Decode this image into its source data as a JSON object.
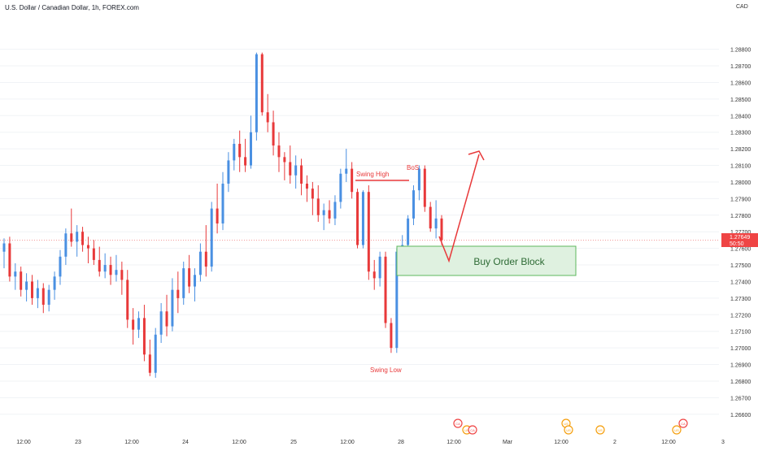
{
  "title": "U.S. Dollar / Canadian Dollar, 1h, FOREX.com",
  "currency": "CAD",
  "price_tag": {
    "value": "1.27649",
    "countdown": "50:50",
    "color": "#ef4444"
  },
  "colors": {
    "up": "#4a90e2",
    "down": "#e8393a",
    "grid": "#f0f3f6",
    "axis_text": "#333333",
    "ob_fill": "#dff1e0",
    "ob_stroke": "#5cb85c",
    "ob_text": "#2e6b35",
    "annotation": "#e8393a",
    "price_line": "#f29595"
  },
  "annotations": {
    "swing_high": "Swing High",
    "bos": "BoS",
    "swing_low": "Swing Low",
    "order_block": "Buy Order Block"
  },
  "x_axis": {
    "ticks": [
      "12:00",
      "23",
      "12:00",
      "24",
      "12:00",
      "25",
      "12:00",
      "28",
      "12:00",
      "Mar",
      "12:00",
      "2",
      "12:00",
      "3"
    ]
  },
  "events": [
    {
      "label": "CA",
      "color": "#ef4444"
    },
    {
      "label": "US",
      "color": "#f59e0b"
    },
    {
      "label": "CA",
      "color": "#ef4444"
    },
    {
      "label": "US",
      "color": "#f59e0b"
    },
    {
      "label": "US",
      "color": "#f59e0b"
    },
    {
      "label": "US",
      "color": "#f59e0b"
    },
    {
      "label": "CA",
      "color": "#ef4444"
    },
    {
      "label": "US",
      "color": "#f59e0b"
    }
  ],
  "chart_data": {
    "type": "candlestick",
    "title": "U.S. Dollar / Canadian Dollar, 1h, FOREX.com",
    "ylim": [
      1.2655,
      1.2895
    ],
    "y_ticks": [
      "1.28800",
      "1.28700",
      "1.28600",
      "1.28500",
      "1.28400",
      "1.28300",
      "1.28200",
      "1.28100",
      "1.28000",
      "1.27900",
      "1.27800",
      "1.27700",
      "1.27600",
      "1.27500",
      "1.27400",
      "1.27300",
      "1.27200",
      "1.27100",
      "1.27000",
      "1.26900",
      "1.26800",
      "1.26700",
      "1.26600"
    ],
    "candles": [
      [
        1.2758,
        1.2766,
        1.2748,
        1.2763
      ],
      [
        1.2763,
        1.2767,
        1.274,
        1.2743
      ],
      [
        1.2743,
        1.2751,
        1.2735,
        1.2746
      ],
      [
        1.2746,
        1.2749,
        1.2731,
        1.2735
      ],
      [
        1.2735,
        1.2745,
        1.2728,
        1.274
      ],
      [
        1.274,
        1.2744,
        1.2726,
        1.273
      ],
      [
        1.273,
        1.2741,
        1.2724,
        1.2736
      ],
      [
        1.2736,
        1.2739,
        1.2721,
        1.2726
      ],
      [
        1.2726,
        1.2738,
        1.2722,
        1.2735
      ],
      [
        1.2735,
        1.2746,
        1.2729,
        1.2743
      ],
      [
        1.2743,
        1.2759,
        1.2738,
        1.2755
      ],
      [
        1.2755,
        1.2772,
        1.275,
        1.2769
      ],
      [
        1.2769,
        1.2784,
        1.2761,
        1.2764
      ],
      [
        1.2764,
        1.2774,
        1.2755,
        1.277
      ],
      [
        1.277,
        1.2773,
        1.2758,
        1.2762
      ],
      [
        1.2762,
        1.2767,
        1.2751,
        1.276
      ],
      [
        1.276,
        1.2765,
        1.275,
        1.2753
      ],
      [
        1.2753,
        1.2761,
        1.2743,
        1.2746
      ],
      [
        1.2746,
        1.2757,
        1.2742,
        1.275
      ],
      [
        1.275,
        1.2755,
        1.2738,
        1.2744
      ],
      [
        1.2744,
        1.2756,
        1.274,
        1.2747
      ],
      [
        1.2747,
        1.2752,
        1.2732,
        1.2741
      ],
      [
        1.2741,
        1.2747,
        1.2712,
        1.2717
      ],
      [
        1.2717,
        1.2724,
        1.2702,
        1.2711
      ],
      [
        1.2711,
        1.2722,
        1.2706,
        1.2718
      ],
      [
        1.2718,
        1.2726,
        1.2692,
        1.2696
      ],
      [
        1.2696,
        1.2705,
        1.2683,
        1.2685
      ],
      [
        1.2685,
        1.2712,
        1.2682,
        1.2708
      ],
      [
        1.2708,
        1.2727,
        1.2703,
        1.2722
      ],
      [
        1.2722,
        1.2732,
        1.2707,
        1.2713
      ],
      [
        1.2713,
        1.2742,
        1.271,
        1.2735
      ],
      [
        1.2735,
        1.2746,
        1.2721,
        1.273
      ],
      [
        1.273,
        1.2752,
        1.2726,
        1.2748
      ],
      [
        1.2748,
        1.2756,
        1.2733,
        1.2737
      ],
      [
        1.2737,
        1.2748,
        1.2728,
        1.2744
      ],
      [
        1.2744,
        1.2763,
        1.274,
        1.2758
      ],
      [
        1.2758,
        1.2774,
        1.2743,
        1.2749
      ],
      [
        1.2749,
        1.2788,
        1.2746,
        1.2784
      ],
      [
        1.2784,
        1.2799,
        1.2769,
        1.2775
      ],
      [
        1.2775,
        1.2806,
        1.2771,
        1.2799
      ],
      [
        1.2799,
        1.2818,
        1.2794,
        1.2813
      ],
      [
        1.2813,
        1.2826,
        1.2807,
        1.2823
      ],
      [
        1.2823,
        1.2831,
        1.2806,
        1.2815
      ],
      [
        1.2815,
        1.2826,
        1.2806,
        1.281
      ],
      [
        1.281,
        1.284,
        1.2808,
        1.283
      ],
      [
        1.283,
        1.2878,
        1.2825,
        1.2877
      ],
      [
        1.2877,
        1.2878,
        1.284,
        1.2842
      ],
      [
        1.2842,
        1.2853,
        1.283,
        1.2836
      ],
      [
        1.2836,
        1.2843,
        1.2816,
        1.2822
      ],
      [
        1.2822,
        1.283,
        1.2806,
        1.2815
      ],
      [
        1.2815,
        1.2818,
        1.2801,
        1.2812
      ],
      [
        1.2812,
        1.2822,
        1.2799,
        1.2804
      ],
      [
        1.2804,
        1.2816,
        1.2796,
        1.281
      ],
      [
        1.281,
        1.2814,
        1.2792,
        1.2799
      ],
      [
        1.2799,
        1.2804,
        1.2788,
        1.2796
      ],
      [
        1.2796,
        1.28,
        1.278,
        1.279
      ],
      [
        1.279,
        1.2798,
        1.2776,
        1.278
      ],
      [
        1.278,
        1.2787,
        1.2771,
        1.2783
      ],
      [
        1.2783,
        1.2789,
        1.2775,
        1.2778
      ],
      [
        1.2778,
        1.2792,
        1.2774,
        1.2788
      ],
      [
        1.2788,
        1.2808,
        1.2784,
        1.2805
      ],
      [
        1.2805,
        1.282,
        1.28,
        1.2808
      ],
      [
        1.2808,
        1.2812,
        1.279,
        1.2794
      ],
      [
        1.2794,
        1.2796,
        1.276,
        1.2762
      ],
      [
        1.2762,
        1.2795,
        1.276,
        1.2794
      ],
      [
        1.2794,
        1.2798,
        1.2741,
        1.2746
      ],
      [
        1.2746,
        1.2753,
        1.2735,
        1.2742
      ],
      [
        1.2742,
        1.2758,
        1.2737,
        1.2755
      ],
      [
        1.2755,
        1.2758,
        1.2712,
        1.2715
      ],
      [
        1.2715,
        1.2718,
        1.2697,
        1.27
      ],
      [
        1.27,
        1.276,
        1.2697,
        1.2758
      ],
      [
        1.2758,
        1.2768,
        1.2749,
        1.2762
      ],
      [
        1.2762,
        1.278,
        1.2758,
        1.2778
      ],
      [
        1.2778,
        1.2798,
        1.2774,
        1.2795
      ],
      [
        1.2795,
        1.281,
        1.2789,
        1.2808
      ],
      [
        1.2808,
        1.281,
        1.2782,
        1.2785
      ],
      [
        1.2785,
        1.2788,
        1.277,
        1.2772
      ],
      [
        1.2772,
        1.2789,
        1.2766,
        1.2778
      ],
      [
        1.2778,
        1.278,
        1.2762,
        1.2765
      ]
    ]
  }
}
